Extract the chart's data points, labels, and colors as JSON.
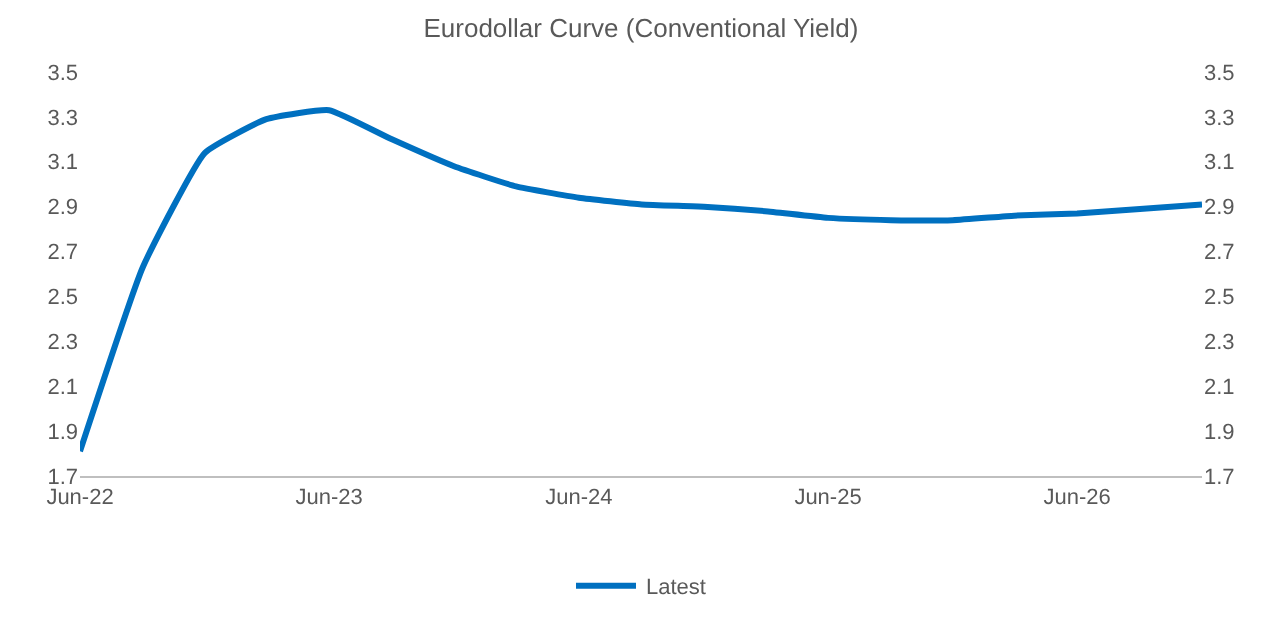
{
  "chart_data": {
    "type": "line",
    "title": "Eurodollar Curve (Conventional Yield)",
    "x": [
      "2022-06",
      "2022-09",
      "2022-12",
      "2023-03",
      "2023-06",
      "2023-09",
      "2023-12",
      "2024-03",
      "2024-06",
      "2024-09",
      "2024-12",
      "2025-03",
      "2025-06",
      "2025-09",
      "2025-12",
      "2026-03",
      "2026-06",
      "2026-09",
      "2026-12"
    ],
    "series": [
      {
        "name": "Latest",
        "color": "#0070c0",
        "values": [
          1.81,
          2.63,
          3.14,
          3.29,
          3.33,
          3.2,
          3.08,
          2.99,
          2.94,
          2.91,
          2.9,
          2.88,
          2.85,
          2.84,
          2.84,
          2.86,
          2.87,
          2.89,
          2.91
        ]
      }
    ],
    "xlim": [
      "2022-06",
      "2026-12"
    ],
    "xticks": [
      {
        "value": "2022-06",
        "label": "Jun-22"
      },
      {
        "value": "2023-06",
        "label": "Jun-23"
      },
      {
        "value": "2024-06",
        "label": "Jun-24"
      },
      {
        "value": "2025-06",
        "label": "Jun-25"
      },
      {
        "value": "2026-06",
        "label": "Jun-26"
      }
    ],
    "ylim": [
      1.7,
      3.5
    ],
    "yticks": [
      1.7,
      1.9,
      2.1,
      2.3,
      2.5,
      2.7,
      2.9,
      3.1,
      3.3,
      3.5
    ],
    "y2lim": [
      1.7,
      3.5
    ],
    "y2ticks": [
      1.7,
      1.9,
      2.1,
      2.3,
      2.5,
      2.7,
      2.9,
      3.1,
      3.3,
      3.5
    ],
    "grid": false,
    "legend": "bottom",
    "marker": "none",
    "line_style": "solid"
  }
}
